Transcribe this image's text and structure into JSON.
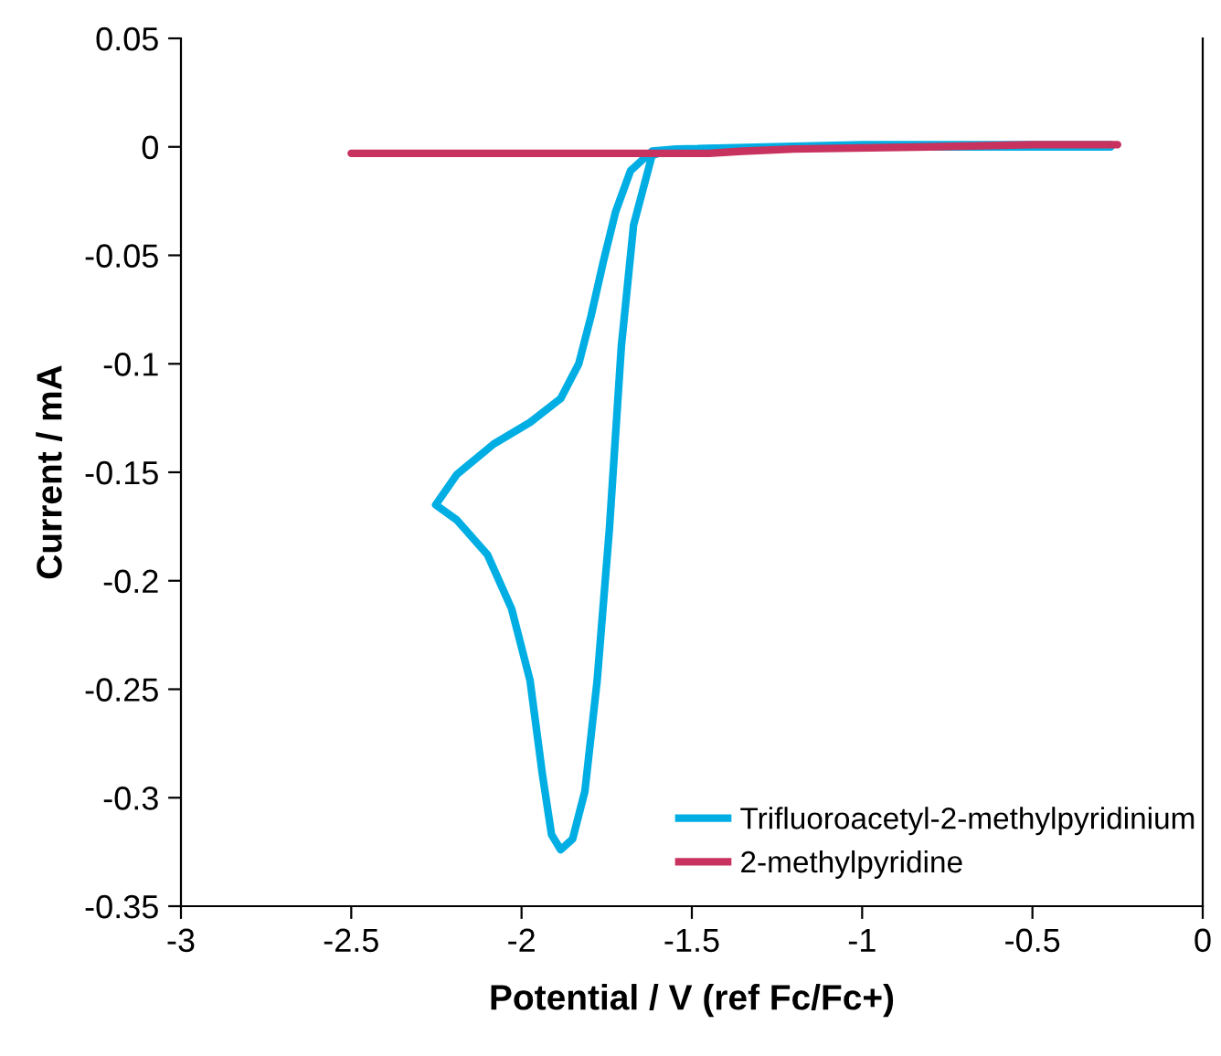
{
  "chart_data": {
    "type": "line",
    "xlabel": "Potential / V (ref Fc/Fc+)",
    "ylabel": "Current / mA",
    "xlim": [
      -3,
      0
    ],
    "xticks": [
      -3,
      -2.5,
      -2,
      -1.5,
      -1,
      -0.5,
      0
    ],
    "ylim": [
      -0.35,
      0.05
    ],
    "yticks": [
      -0.35,
      -0.3,
      -0.25,
      -0.2,
      -0.15,
      -0.1,
      -0.05,
      0,
      0.05
    ],
    "grid": false,
    "legend": "bottom right",
    "marker": "none",
    "line_style": "solid",
    "series": [
      {
        "name": "Trifluoroacetyl-2-methylpyridinium",
        "color": "#00aee4",
        "x": [
          -0.27,
          -1.0,
          -1.5,
          -1.58,
          -1.617,
          -1.671,
          -1.707,
          -1.742,
          -1.778,
          -1.814,
          -1.85,
          -1.885,
          -1.912,
          -1.939,
          -1.975,
          -2.029,
          -2.1,
          -2.19,
          -2.252,
          -2.19,
          -2.082,
          -1.975,
          -1.885,
          -1.832,
          -1.796,
          -1.76,
          -1.724,
          -1.68,
          -1.617,
          -1.546,
          -1.0,
          -0.27
        ],
        "values": [
          0.0,
          0.0,
          -0.001,
          -0.002,
          -0.004,
          -0.036,
          -0.092,
          -0.176,
          -0.246,
          -0.297,
          -0.319,
          -0.324,
          -0.317,
          -0.289,
          -0.246,
          -0.213,
          -0.188,
          -0.172,
          -0.165,
          -0.151,
          -0.137,
          -0.127,
          -0.116,
          -0.1,
          -0.078,
          -0.053,
          -0.03,
          -0.011,
          -0.002,
          -0.001,
          0.001,
          0.001
        ]
      },
      {
        "name": "2-methylpyridine",
        "color": "#c8325e",
        "x": [
          -2.5,
          -2.0,
          -1.5,
          -1.45,
          -1.35,
          -1.2,
          -0.8,
          -0.5,
          -0.25
        ],
        "values": [
          -0.003,
          -0.003,
          -0.003,
          -0.003,
          -0.002,
          -0.001,
          0.0,
          0.001,
          0.001
        ]
      }
    ]
  }
}
